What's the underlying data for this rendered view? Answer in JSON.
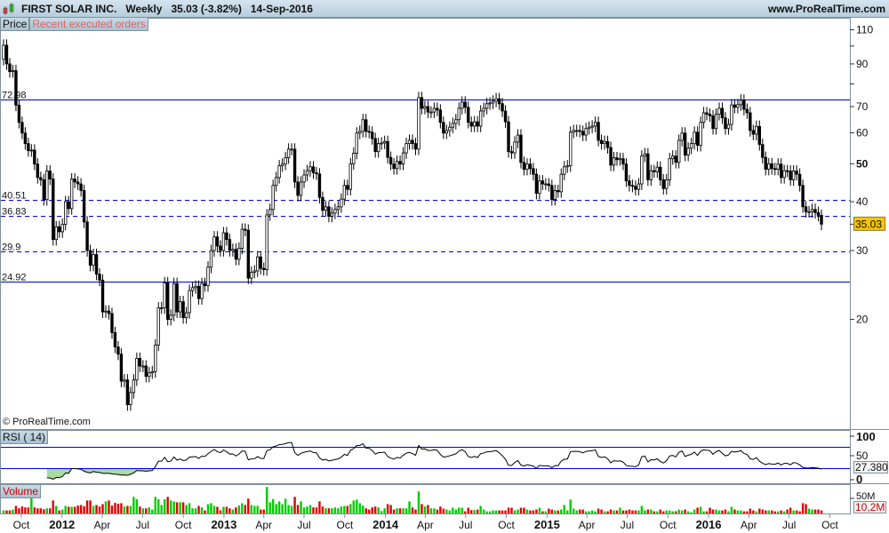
{
  "header": {
    "title": "FIRST SOLAR INC.   Weekly   35.03 (-3.82%)   14-Sep-2016",
    "site": "www.ProRealTime.com"
  },
  "price_panel": {
    "tab_label": "Price",
    "orders_label": "Recent executed orders",
    "copyright": "© ProRealTime.com"
  },
  "rsi_panel": {
    "tab_label": "RSI ( 14)"
  },
  "volume_panel": {
    "tab_label": "Volume"
  },
  "colors": {
    "up_volume": "#00cc00",
    "down_volume": "#dd0000",
    "levels": "#0000dd",
    "last_price_bg": "#f7c600",
    "rsi_fill": "#a9dba0"
  },
  "chart_data": [
    {
      "type": "candlestick",
      "name": "Price",
      "interval": "Weekly",
      "x_start": "2011-08-22",
      "x_end": "2016-09-12",
      "y_scale": "log",
      "ylim": [
        10.5,
        117
      ],
      "yticks": [
        {
          "value": 110,
          "label": "110",
          "bold": false
        },
        {
          "value": 100,
          "label": "",
          "bold": false
        },
        {
          "value": 90,
          "label": "90",
          "bold": false
        },
        {
          "value": 80,
          "label": "",
          "bold": false
        },
        {
          "value": 70,
          "label": "70",
          "bold": false
        },
        {
          "value": 60,
          "label": "60",
          "bold": false
        },
        {
          "value": 50,
          "label": "50",
          "bold": true
        },
        {
          "value": 40,
          "label": "40",
          "bold": false
        },
        {
          "value": 30,
          "label": "30",
          "bold": false
        },
        {
          "value": 20,
          "label": "20",
          "bold": false
        }
      ],
      "last_price": "35.03",
      "levels": [
        {
          "value": 72.98,
          "label": "72.98",
          "style": "solid"
        },
        {
          "value": 40.51,
          "label": "40.51",
          "style": "dashed"
        },
        {
          "value": 36.83,
          "label": "36.83",
          "style": "dashed"
        },
        {
          "value": 29.9,
          "label": "29.9",
          "style": "dashed"
        },
        {
          "value": 24.92,
          "label": "24.92",
          "style": "solid"
        }
      ],
      "close": [
        100.5,
        90,
        86,
        86.5,
        70.6,
        63.8,
        59.9,
        56.3,
        54,
        54.2,
        49.9,
        46.1,
        45.5,
        40.5,
        47.9,
        45.7,
        32,
        34.5,
        33.5,
        35,
        40,
        38.4,
        45.7,
        44.9,
        44.4,
        42.7,
        35.5,
        30,
        27.5,
        29.3,
        26.1,
        25.2,
        20.9,
        21,
        20.7,
        18.5,
        17,
        16.3,
        13.9,
        14,
        12.1,
        13,
        14,
        15.9,
        15.2,
        15.2,
        14.3,
        14.6,
        14.7,
        17.2,
        21.4,
        21.4,
        24.8,
        20,
        20.5,
        24.7,
        20.9,
        22.2,
        20.2,
        20.8,
        23.7,
        24.1,
        24.3,
        22.6,
        24.7,
        24.4,
        27.2,
        30,
        32.5,
        30.8,
        30,
        33.3,
        32,
        30,
        30.2,
        28.5,
        30.4,
        34,
        33.8,
        25.5,
        26.4,
        26.6,
        28.9,
        27,
        26.8,
        37,
        38.2,
        44,
        46.1,
        49.4,
        49.9,
        51.8,
        54.5,
        54.5,
        44.9,
        41.5,
        44.9,
        46.8,
        48,
        49.1,
        47.4,
        47.1,
        41,
        38,
        38.8,
        36.7,
        37.4,
        38.2,
        38.8,
        40.6,
        44,
        43,
        50,
        53.2,
        59.9,
        60.5,
        64.8,
        60.5,
        60.2,
        58,
        53.7,
        56.3,
        56.5,
        57,
        51.9,
        49.9,
        48.6,
        50.7,
        49.9,
        53.3,
        56.3,
        57.4,
        56.3,
        54.5,
        73.8,
        69.3,
        70,
        67.8,
        67.8,
        69.3,
        68.6,
        63.8,
        59.9,
        60.8,
        62,
        63.4,
        64.8,
        69.3,
        71.9,
        69.7,
        63.8,
        62.4,
        64,
        62.4,
        68.2,
        69.3,
        71.2,
        71.5,
        72.3,
        73.3,
        71.2,
        68.2,
        64,
        53.7,
        53.3,
        56.8,
        59.2,
        50.4,
        48.4,
        49.9,
        48.6,
        47,
        42,
        45.2,
        44.4,
        44.4,
        44,
        40.5,
        42.7,
        42.4,
        47,
        49.1,
        49.4,
        60.2,
        60.8,
        60.8,
        60.5,
        59.2,
        61.5,
        62,
        62.4,
        63.8,
        57.4,
        56.3,
        57,
        55,
        49.6,
        51.8,
        51.2,
        51.5,
        49.9,
        45.2,
        44,
        43.8,
        43,
        44.4,
        52.3,
        53,
        45.5,
        48,
        47.7,
        49,
        45.5,
        43.2,
        45.5,
        51.5,
        52.3,
        50.4,
        57.4,
        59.9,
        52.6,
        54.8,
        56.3,
        60.2,
        55.7,
        63.8,
        67.5,
        66.9,
        66.3,
        61.5,
        66.9,
        69.3,
        65.5,
        61.5,
        63,
        70.7,
        69.7,
        70.8,
        72.7,
        68.9,
        67.5,
        60.8,
        59.5,
        62.3,
        56,
        51.9,
        48.4,
        50,
        48.6,
        48.4,
        49.9,
        46.1,
        48,
        47.9,
        45.5,
        47.9,
        47,
        44,
        38.8,
        37.7,
        37.7,
        38.2,
        37.5,
        36.9,
        35.03
      ]
    },
    {
      "type": "line",
      "name": "RSI ( 14)",
      "ylim": [
        0,
        100
      ],
      "levels": [
        70,
        30
      ],
      "yticks": [
        {
          "value": 100,
          "label": "100",
          "bold": true
        },
        {
          "value": 50,
          "label": "50",
          "bold": false
        },
        {
          "value": 0,
          "label": "0",
          "bold": true
        }
      ],
      "last_value": "27.380"
    },
    {
      "type": "bar",
      "name": "Volume",
      "unit": "M",
      "yticks": [
        {
          "value": 50,
          "label": "50M"
        }
      ],
      "last_value": "10,2M",
      "values": [
        10,
        10,
        10,
        13,
        25,
        17,
        23,
        20,
        20,
        50,
        20,
        17,
        17,
        14,
        17,
        17,
        43,
        25,
        10,
        13,
        25,
        22,
        22,
        22,
        26,
        28,
        24,
        43,
        43,
        25,
        28,
        23,
        31,
        40,
        43,
        26,
        35,
        32,
        34,
        23,
        25,
        25,
        55,
        47,
        23,
        17,
        17,
        20,
        13,
        55,
        47,
        28,
        47,
        55,
        43,
        40,
        37,
        37,
        37,
        28,
        34,
        17,
        17,
        25,
        20,
        10,
        31,
        34,
        25,
        22,
        10,
        22,
        22,
        17,
        13,
        20,
        26,
        34,
        28,
        49,
        28,
        25,
        25,
        13,
        13,
        88,
        37,
        47,
        31,
        40,
        31,
        49,
        28,
        25,
        55,
        28,
        40,
        20,
        23,
        28,
        20,
        20,
        40,
        23,
        17,
        17,
        17,
        20,
        17,
        23,
        25,
        25,
        31,
        43,
        46,
        34,
        26,
        17,
        13,
        20,
        23,
        20,
        8,
        17,
        31,
        28,
        13,
        17,
        17,
        17,
        17,
        40,
        20,
        13,
        73,
        31,
        23,
        28,
        17,
        17,
        13,
        23,
        16,
        13,
        10,
        19,
        13,
        19,
        19,
        7,
        19,
        11,
        11,
        13,
        25,
        13,
        7,
        7,
        10,
        10,
        10,
        10,
        10,
        19,
        19,
        10,
        13,
        19,
        19,
        13,
        10,
        10,
        13,
        19,
        7,
        7,
        16,
        13,
        10,
        10,
        13,
        28,
        10,
        46,
        16,
        10,
        13,
        13,
        7,
        7,
        10,
        7,
        16,
        13,
        7,
        7,
        13,
        10,
        10,
        19,
        10,
        10,
        13,
        10,
        10,
        10,
        25,
        10,
        13,
        13,
        7,
        7,
        13,
        7,
        10,
        10,
        7,
        7,
        13,
        10,
        13,
        7,
        4,
        13,
        19,
        22,
        7,
        7,
        19,
        13,
        13,
        10,
        10,
        13,
        7,
        22,
        13,
        10,
        10,
        7,
        7,
        16,
        10,
        7,
        16,
        13,
        10,
        10,
        10,
        7,
        7,
        10,
        7,
        13,
        19,
        10,
        10,
        7,
        34,
        31,
        16,
        13,
        13,
        13,
        10.2
      ]
    }
  ],
  "x_axis": {
    "ticks": [
      {
        "label": "Oct",
        "date": "2011-10-01",
        "bold": false
      },
      {
        "label": "2012",
        "date": "2012-01-01",
        "bold": true
      },
      {
        "label": "Apr",
        "date": "2012-04-01",
        "bold": false
      },
      {
        "label": "Jul",
        "date": "2012-07-01",
        "bold": false
      },
      {
        "label": "Oct",
        "date": "2012-10-01",
        "bold": false
      },
      {
        "label": "2013",
        "date": "2013-01-01",
        "bold": true
      },
      {
        "label": "Apr",
        "date": "2013-04-01",
        "bold": false
      },
      {
        "label": "Jul",
        "date": "2013-07-01",
        "bold": false
      },
      {
        "label": "Oct",
        "date": "2013-10-01",
        "bold": false
      },
      {
        "label": "2014",
        "date": "2014-01-01",
        "bold": true
      },
      {
        "label": "Apr",
        "date": "2014-04-01",
        "bold": false
      },
      {
        "label": "Jul",
        "date": "2014-07-01",
        "bold": false
      },
      {
        "label": "Oct",
        "date": "2014-10-01",
        "bold": false
      },
      {
        "label": "2015",
        "date": "2015-01-01",
        "bold": true
      },
      {
        "label": "Apr",
        "date": "2015-04-01",
        "bold": false
      },
      {
        "label": "Jul",
        "date": "2015-07-01",
        "bold": false
      },
      {
        "label": "Oct",
        "date": "2015-10-01",
        "bold": false
      },
      {
        "label": "2016",
        "date": "2016-01-01",
        "bold": true
      },
      {
        "label": "Apr",
        "date": "2016-04-01",
        "bold": false
      },
      {
        "label": "Jul",
        "date": "2016-07-01",
        "bold": false
      },
      {
        "label": "Oct",
        "date": "2016-10-01",
        "bold": false
      }
    ]
  }
}
